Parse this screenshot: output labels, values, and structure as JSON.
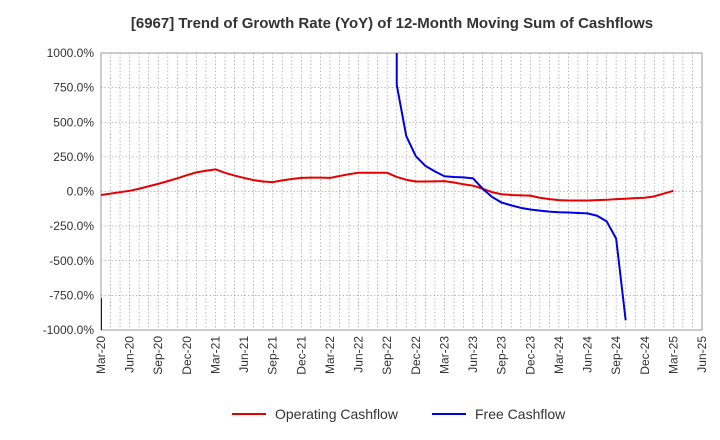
{
  "chart_data": {
    "type": "line",
    "title": "[6967]  Trend of Growth Rate (YoY) of 12-Month Moving Sum of Cashflows",
    "xlabel": "",
    "ylabel": "",
    "ylim": [
      -1000,
      1000
    ],
    "y_ticks": [
      1000,
      750,
      500,
      250,
      0,
      -250,
      -500,
      -750,
      -1000
    ],
    "y_tick_labels": [
      "1000.0%",
      "750.0%",
      "500.0%",
      "250.0%",
      "0.0%",
      "-250.0%",
      "-500.0%",
      "-750.0%",
      "-1000.0%"
    ],
    "x_tick_labels": [
      "Mar-20",
      "Jun-20",
      "Sep-20",
      "Dec-20",
      "Mar-21",
      "Jun-21",
      "Sep-21",
      "Dec-21",
      "Mar-22",
      "Jun-22",
      "Sep-22",
      "Dec-22",
      "Mar-23",
      "Jun-23",
      "Sep-23",
      "Dec-23",
      "Mar-24",
      "Jun-24",
      "Sep-24",
      "Dec-24",
      "Mar-25",
      "Jun-25"
    ],
    "grid": true,
    "legend_position": "bottom",
    "series": [
      {
        "name": "Operating Cashflow",
        "color": "#e60000",
        "points": [
          [
            "Mar-20",
            -25
          ],
          [
            "Apr-20",
            -15
          ],
          [
            "May-20",
            -5
          ],
          [
            "Jun-20",
            5
          ],
          [
            "Jul-20",
            20
          ],
          [
            "Aug-20",
            38
          ],
          [
            "Sep-20",
            55
          ],
          [
            "Oct-20",
            75
          ],
          [
            "Nov-20",
            95
          ],
          [
            "Dec-20",
            118
          ],
          [
            "Jan-21",
            138
          ],
          [
            "Feb-21",
            150
          ],
          [
            "Mar-21",
            160
          ],
          [
            "Apr-21",
            135
          ],
          [
            "May-21",
            115
          ],
          [
            "Jun-21",
            98
          ],
          [
            "Jul-21",
            82
          ],
          [
            "Aug-21",
            72
          ],
          [
            "Sep-21",
            68
          ],
          [
            "Oct-21",
            80
          ],
          [
            "Nov-21",
            90
          ],
          [
            "Dec-21",
            98
          ],
          [
            "Jan-22",
            100
          ],
          [
            "Feb-22",
            100
          ],
          [
            "Mar-22",
            98
          ],
          [
            "Apr-22",
            112
          ],
          [
            "May-22",
            125
          ],
          [
            "Jun-22",
            135
          ],
          [
            "Jul-22",
            135
          ],
          [
            "Aug-22",
            135
          ],
          [
            "Sep-22",
            135
          ],
          [
            "Oct-22",
            105
          ],
          [
            "Nov-22",
            85
          ],
          [
            "Dec-22",
            72
          ],
          [
            "Jan-23",
            72
          ],
          [
            "Feb-23",
            73
          ],
          [
            "Mar-23",
            75
          ],
          [
            "Apr-23",
            65
          ],
          [
            "May-23",
            52
          ],
          [
            "Jun-23",
            42
          ],
          [
            "Jul-23",
            20
          ],
          [
            "Aug-23",
            -5
          ],
          [
            "Sep-23",
            -20
          ],
          [
            "Oct-23",
            -25
          ],
          [
            "Nov-23",
            -28
          ],
          [
            "Dec-23",
            -30
          ],
          [
            "Jan-24",
            -45
          ],
          [
            "Feb-24",
            -55
          ],
          [
            "Mar-24",
            -62
          ],
          [
            "Apr-24",
            -65
          ],
          [
            "May-24",
            -65
          ],
          [
            "Jun-24",
            -65
          ],
          [
            "Jul-24",
            -62
          ],
          [
            "Aug-24",
            -60
          ],
          [
            "Sep-24",
            -55
          ],
          [
            "Oct-24",
            -52
          ],
          [
            "Nov-24",
            -48
          ],
          [
            "Dec-24",
            -45
          ],
          [
            "Jan-25",
            -35
          ],
          [
            "Feb-25",
            -15
          ],
          [
            "Mar-25",
            5
          ]
        ]
      },
      {
        "name": "Free Cashflow",
        "color": "#0000e6",
        "segments": [
          [
            [
              "Mar-20",
              -770
            ],
            [
              "Mar-20",
              -1000
            ]
          ],
          [
            [
              "Oct-22",
              1000
            ],
            [
              "Oct-22",
              770
            ],
            [
              "Nov-22",
              400
            ],
            [
              "Dec-22",
              255
            ],
            [
              "Jan-23",
              185
            ],
            [
              "Feb-23",
              145
            ],
            [
              "Mar-23",
              110
            ],
            [
              "Apr-23",
              105
            ],
            [
              "May-23",
              102
            ],
            [
              "Jun-23",
              95
            ],
            [
              "Jul-23",
              20
            ],
            [
              "Aug-23",
              -40
            ],
            [
              "Sep-23",
              -80
            ],
            [
              "Oct-23",
              -100
            ],
            [
              "Nov-23",
              -118
            ],
            [
              "Dec-23",
              -130
            ],
            [
              "Jan-24",
              -138
            ],
            [
              "Feb-24",
              -145
            ],
            [
              "Mar-24",
              -150
            ],
            [
              "Apr-24",
              -152
            ],
            [
              "May-24",
              -155
            ],
            [
              "Jun-24",
              -158
            ],
            [
              "Jul-24",
              -175
            ],
            [
              "Aug-24",
              -215
            ],
            [
              "Sep-24",
              -340
            ],
            [
              "Oct-24",
              -930
            ]
          ]
        ]
      }
    ]
  }
}
